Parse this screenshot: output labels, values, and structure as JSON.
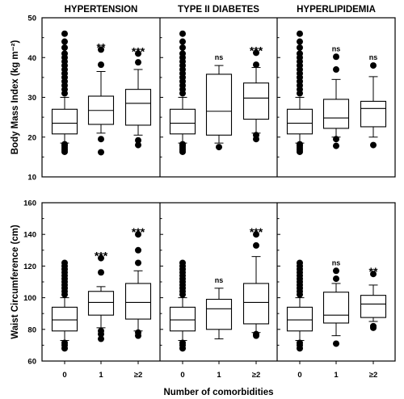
{
  "chart_data": {
    "type": "boxplot",
    "panel_titles": [
      "HYPERTENSION",
      "TYPE II DIABETES",
      "HYPERLIPIDEMIA"
    ],
    "categories": [
      "0",
      "1",
      "≥2"
    ],
    "xlabel": "Number of comorbidities",
    "rows": [
      {
        "ylabel": "Body Mass Index (kg m⁻²)",
        "ylim": [
          10,
          50
        ],
        "yticks": [
          10,
          20,
          30,
          40,
          50
        ],
        "panels": [
          {
            "boxes": [
              {
                "whisker_low": 18.5,
                "q1": 20.8,
                "median": 23.5,
                "q3": 27,
                "whisker_high": 30,
                "outliers_low": [
                  16.3,
                  16.8,
                  17.3,
                  17.8,
                  18.2
                ],
                "outliers_high": [
                  31,
                  32,
                  33,
                  34,
                  35,
                  36,
                  37,
                  38,
                  39,
                  40,
                  41,
                  42.5,
                  44,
                  46
                ],
                "sig": ""
              },
              {
                "whisker_low": 21,
                "q1": 23.2,
                "median": 26.7,
                "q3": 30.3,
                "whisker_high": 36.5,
                "outliers_low": [
                  16.2,
                  19.5
                ],
                "outliers_high": [
                  38.2,
                  42
                ],
                "sig": "**"
              },
              {
                "whisker_low": 20.5,
                "q1": 23,
                "median": 28.5,
                "q3": 32,
                "whisker_high": 37,
                "outliers_low": [
                  18,
                  19.2
                ],
                "outliers_high": [
                  38.8,
                  41
                ],
                "sig": "***"
              }
            ]
          },
          {
            "boxes": [
              {
                "whisker_low": 18.5,
                "q1": 20.8,
                "median": 23.5,
                "q3": 27,
                "whisker_high": 30,
                "outliers_low": [
                  16.3,
                  16.8,
                  17.3,
                  17.8,
                  18.2
                ],
                "outliers_high": [
                  31,
                  32,
                  33,
                  34,
                  35,
                  36,
                  37,
                  38,
                  39,
                  40,
                  41,
                  42.5,
                  44,
                  46
                ],
                "sig": ""
              },
              {
                "whisker_low": 18.5,
                "q1": 20.5,
                "median": 26.5,
                "q3": 35.8,
                "whisker_high": 38,
                "outliers_low": [
                  17.5
                ],
                "outliers_high": [],
                "sig": "ns"
              },
              {
                "whisker_low": 21,
                "q1": 24.5,
                "median": 29.8,
                "q3": 33.6,
                "whisker_high": 37.5,
                "outliers_low": [
                  19.5,
                  20.5
                ],
                "outliers_high": [
                  38.2,
                  41.2
                ],
                "sig": "***"
              }
            ]
          },
          {
            "boxes": [
              {
                "whisker_low": 18.5,
                "q1": 20.8,
                "median": 23.5,
                "q3": 27,
                "whisker_high": 30,
                "outliers_low": [
                  16.3,
                  16.8,
                  17.3,
                  17.8,
                  18.2
                ],
                "outliers_high": [
                  31,
                  32,
                  33,
                  34,
                  35,
                  36,
                  37,
                  38,
                  39,
                  40,
                  41,
                  42.5,
                  44,
                  46
                ],
                "sig": ""
              },
              {
                "whisker_low": 20,
                "q1": 22.2,
                "median": 24.8,
                "q3": 29.5,
                "whisker_high": 34.5,
                "outliers_low": [
                  17.8,
                  19.5
                ],
                "outliers_high": [
                  37,
                  40.2
                ],
                "sig": "ns"
              },
              {
                "whisker_low": 20,
                "q1": 22.6,
                "median": 27.2,
                "q3": 29,
                "whisker_high": 35.2,
                "outliers_low": [
                  18
                ],
                "outliers_high": [
                  38
                ],
                "sig": "ns"
              }
            ]
          }
        ]
      },
      {
        "ylabel": "Waist Circumference (cm)",
        "ylim": [
          60,
          160
        ],
        "yticks": [
          60,
          80,
          100,
          120,
          140,
          160
        ],
        "panels": [
          {
            "boxes": [
              {
                "whisker_low": 73,
                "q1": 79,
                "median": 86,
                "q3": 94,
                "whisker_high": 100,
                "outliers_low": [
                  68,
                  70,
                  71.5
                ],
                "outliers_high": [
                  102,
                  104,
                  106,
                  108,
                  110,
                  112,
                  114,
                  116,
                  118,
                  120,
                  122
                ],
                "sig": ""
              },
              {
                "whisker_low": 81,
                "q1": 89,
                "median": 97,
                "q3": 104,
                "whisker_high": 107,
                "outliers_low": [
                  74,
                  77,
                  79
                ],
                "outliers_high": [
                  116,
                  125
                ],
                "sig": "***"
              },
              {
                "whisker_low": 79,
                "q1": 86.5,
                "median": 97,
                "q3": 109,
                "whisker_high": 117,
                "outliers_low": [
                  76,
                  78
                ],
                "outliers_high": [
                  122,
                  130,
                  140
                ],
                "sig": "***"
              }
            ]
          },
          {
            "boxes": [
              {
                "whisker_low": 73,
                "q1": 79,
                "median": 86,
                "q3": 94,
                "whisker_high": 100,
                "outliers_low": [
                  68,
                  70,
                  71.5
                ],
                "outliers_high": [
                  102,
                  104,
                  106,
                  108,
                  110,
                  112,
                  114,
                  116,
                  118,
                  120,
                  122
                ],
                "sig": ""
              },
              {
                "whisker_low": 74,
                "q1": 80,
                "median": 93,
                "q3": 99,
                "whisker_high": 106,
                "outliers_low": [],
                "outliers_high": [],
                "sig": "ns"
              },
              {
                "whisker_low": 78,
                "q1": 83.5,
                "median": 97,
                "q3": 109,
                "whisker_high": 126,
                "outliers_low": [
                  76,
                  77
                ],
                "outliers_high": [
                  133,
                  140
                ],
                "sig": "***"
              }
            ]
          },
          {
            "boxes": [
              {
                "whisker_low": 73,
                "q1": 79,
                "median": 86,
                "q3": 94,
                "whisker_high": 100,
                "outliers_low": [
                  68,
                  70,
                  71.5
                ],
                "outliers_high": [
                  102,
                  104,
                  106,
                  108,
                  110,
                  112,
                  114,
                  116,
                  118,
                  120,
                  122
                ],
                "sig": ""
              },
              {
                "whisker_low": 76,
                "q1": 84,
                "median": 89,
                "q3": 103.5,
                "whisker_high": 109,
                "outliers_low": [
                  71
                ],
                "outliers_high": [
                  112,
                  117
                ],
                "sig": "ns"
              },
              {
                "whisker_low": 85,
                "q1": 87.5,
                "median": 96,
                "q3": 101.5,
                "whisker_high": 108,
                "outliers_low": [
                  81,
                  82
                ],
                "outliers_high": [
                  115
                ],
                "sig": "**"
              }
            ]
          }
        ]
      }
    ]
  }
}
